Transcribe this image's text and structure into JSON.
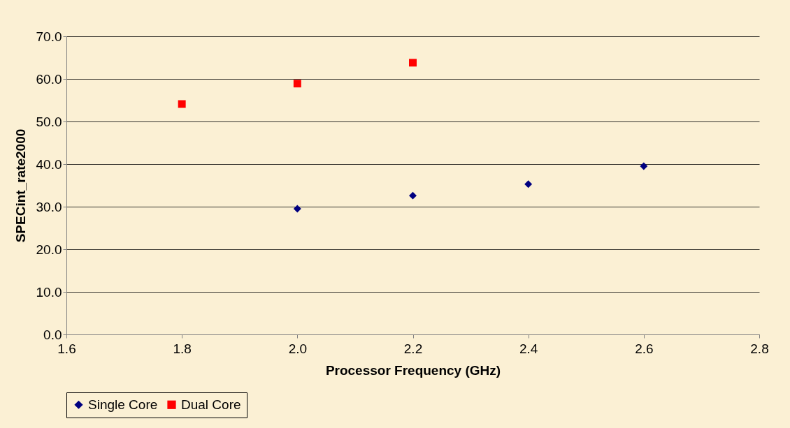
{
  "chart_data": {
    "type": "scatter",
    "xlabel": "Processor Frequency (GHz)",
    "ylabel": "SPECint_rate2000",
    "xlim": [
      1.6,
      2.8
    ],
    "xticks": [
      {
        "value": 1.6,
        "label": "1.6"
      },
      {
        "value": 1.8,
        "label": "1.8"
      },
      {
        "value": 2.0,
        "label": "2.0"
      },
      {
        "value": 2.2,
        "label": "2.2"
      },
      {
        "value": 2.4,
        "label": "2.4"
      },
      {
        "value": 2.6,
        "label": "2.6"
      },
      {
        "value": 2.8,
        "label": "2.8"
      }
    ],
    "ylim": [
      0,
      70
    ],
    "yticks": [
      {
        "value": 0,
        "label": "0.0"
      },
      {
        "value": 10,
        "label": "10.0"
      },
      {
        "value": 20,
        "label": "20.0"
      },
      {
        "value": 30,
        "label": "30.0"
      },
      {
        "value": 40,
        "label": "40.0"
      },
      {
        "value": 50,
        "label": "50.0"
      },
      {
        "value": 60,
        "label": "60.0"
      },
      {
        "value": 70,
        "label": "70.0"
      }
    ],
    "grid": "y",
    "legend": "bottom",
    "series": [
      {
        "name": "Single Core",
        "color": "#000080",
        "marker": "diamond",
        "x": [
          2.0,
          2.2,
          2.4,
          2.6
        ],
        "values": [
          29.5,
          32.6,
          35.3,
          39.5
        ]
      },
      {
        "name": "Dual Core",
        "color": "#ff0000",
        "marker": "square",
        "x": [
          1.8,
          2.0,
          2.2
        ],
        "values": [
          54.1,
          58.9,
          63.8
        ]
      }
    ]
  }
}
